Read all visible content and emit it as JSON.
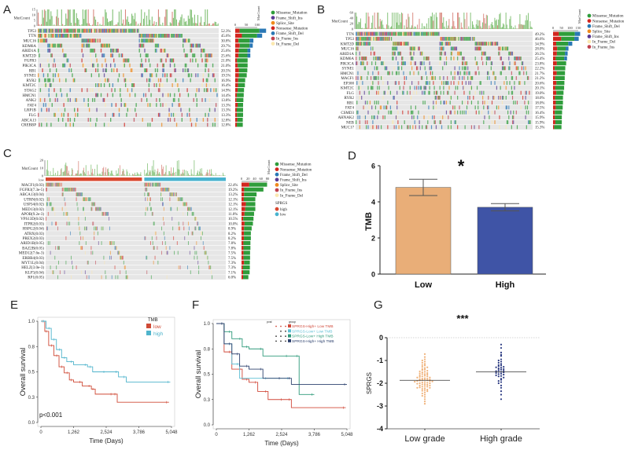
{
  "panels": {
    "A": "A",
    "B": "B",
    "C": "C",
    "D": "D",
    "E": "E",
    "F": "F",
    "G": "G"
  },
  "colors": {
    "Missense_Mutation": "#2f9d3b",
    "Nonsense_Mutation": "#d3261f",
    "Frame_Shift_Del": "#2a78b5",
    "Frame_Shift_Ins": "#5b3b94",
    "Splice_Site": "#f08a1c",
    "In_Frame_Ins": "#c0424f",
    "In_Frame_Del": "#fbe8b0",
    "sprgs_high": "#d9472f",
    "sprgs_low": "#49b3cf",
    "grid_bg": "#e6e6e6"
  },
  "chart_data": [
    {
      "type": "heatmap",
      "panel": "A",
      "count_label": "MutCount",
      "count_ticks": [
        "0",
        "5",
        "10",
        "15"
      ],
      "side_ticks": [
        "0",
        "50",
        "100"
      ],
      "genes": [
        "TP53",
        "TTN",
        "MUC16",
        "KDM6A",
        "ARID1A",
        "KMT2D",
        "FGFR3",
        "PIK3CA",
        "RB1",
        "SYNE1",
        "RYR2",
        "KMT2C",
        "STAG2",
        "HMCN1",
        "ANK2",
        "FAT4",
        "LRP1B",
        "FLG",
        "ABCA13",
        "CREBBP"
      ],
      "percents": [
        "52.3%",
        "45.6%",
        "30.8%",
        "29.7%",
        "25.6%",
        "25.6%",
        "21.0%",
        "21.0%",
        "20.5%",
        "19.5%",
        "16.9%",
        "16.4%",
        "14.9%",
        "14.4%",
        "13.8%",
        "13.3%",
        "13.3%",
        "13.3%",
        "12.8%",
        "12.8%"
      ],
      "legend": [
        "Missense_Mutation",
        "Frame_Shift_Ins",
        "Splice_Site",
        "Nonsense_Mutation",
        "Frame_Shift_Del",
        "In_Frame_Ins",
        "In_Frame_Del"
      ]
    },
    {
      "type": "heatmap",
      "panel": "B",
      "count_label": "MutCount",
      "count_ticks": [
        "0",
        "20",
        "40",
        "60"
      ],
      "side_ticks": [
        "0",
        "50",
        "100",
        "150"
      ],
      "genes": [
        "TTN",
        "TP53",
        "KMT2D",
        "MUC16",
        "ARID1A",
        "KDM6A",
        "PIK3CA",
        "SYNE1",
        "HMCN1",
        "MACF1",
        "EP300",
        "KMT2C",
        "FLG",
        "RYR2",
        "RB1",
        "FAT4",
        "CSMD3",
        "AHNAK2",
        "NEB",
        "MUC17"
      ],
      "percents": [
        "49.2%",
        "46.6%",
        "34.9%",
        "28.0%",
        "26.5%",
        "25.4%",
        "23.8%",
        "22.2%",
        "21.7%",
        "21.2%",
        "20.6%",
        "20.1%",
        "19.0%",
        "18.0%",
        "18.0%",
        "17.5%",
        "16.4%",
        "15.9%",
        "15.9%",
        "15.3%"
      ],
      "legend": [
        "Missense_Mutation",
        "Nonsense_Mutation",
        "Frame_Shift_Del",
        "Splice_Site",
        "Frame_Shift_Ins",
        "In_Frame_Del",
        "In_Frame_Ins"
      ]
    },
    {
      "type": "heatmap",
      "panel": "C",
      "count_label": "MutCount",
      "count_ticks": [
        "0",
        "10",
        "20"
      ],
      "side_ticks": [
        "0",
        "20",
        "40",
        "60",
        "80"
      ],
      "group_label": "low",
      "genes": [
        "MACF1(0.03)",
        "FGFR3(7.3e-5)",
        "ABCA13(0.04)",
        "UTRN(0.02)",
        "USP34(0.02)",
        "MED13(0.02)",
        "APOB(9.2e-3)",
        "VPS13D(0.02)",
        "ITPR2(0.03)",
        "HSPG2(0.04)",
        "ATRX(0.03)",
        "PREX2(0.03)",
        "ARID1B(0.05)",
        "BAZ2B(0.05)",
        "MED12(7.6e-3)",
        "ERBB4(0.03)",
        "MYT1L(0.04)",
        "HELZ(3.0e-3)",
        "KLF5(0.04)",
        "RP1(0.05)"
      ],
      "percents": [
        "22.4%",
        "19.2%",
        "13.2%",
        "12.1%",
        "12.1%",
        "12.1%",
        "11.0%",
        "10.5%",
        "10.0%",
        "8.9%",
        "8.2%",
        "8.2%",
        "7.8%",
        "7.8%",
        "7.5%",
        "7.5%",
        "7.3%",
        "7.3%",
        "7.1%",
        "6.0%"
      ],
      "legend": [
        "Missense_Mutation",
        "Nonsense_Mutation",
        "Frame_Shift_Del",
        "Frame_Shift_Ins",
        "Splice_Site",
        "In_Frame_Ins",
        "In_Frame_Del"
      ],
      "group_legend_title": "SPRGS",
      "group_legend": [
        "high",
        "low"
      ]
    },
    {
      "type": "bar",
      "panel": "D",
      "categories": [
        "Low",
        "High"
      ],
      "values": [
        4.8,
        3.7
      ],
      "error": [
        [
          4.35,
          5.25
        ],
        [
          3.5,
          3.9
        ]
      ],
      "ylabel": "TMB",
      "ylim": [
        0,
        6
      ],
      "yticks": [
        "0",
        "2",
        "4",
        "6"
      ],
      "annotation": "*",
      "colors": [
        "#e9ae78",
        "#3f54a6"
      ]
    },
    {
      "type": "line",
      "panel": "E",
      "xlabel": "Time (Days)",
      "ylabel": "Overall survival",
      "xticks": [
        "0",
        "1,262",
        "2,524",
        "3,786",
        "5,048"
      ],
      "xlim": [
        0,
        5048
      ],
      "yticks": [
        {
          "v": 0,
          "label": "0.0"
        },
        {
          "v": 0.25,
          "label": "0.3"
        },
        {
          "v": 0.5,
          "label": "0.5"
        },
        {
          "v": 0.75,
          "label": "0.8"
        },
        {
          "v": 1,
          "label": "1.0"
        }
      ],
      "legend_title": "TMB",
      "annotation": "p<0.001",
      "series": [
        {
          "name": "low",
          "color": "#cf4a36",
          "x": [
            0,
            150,
            300,
            500,
            700,
            900,
            1100,
            1262,
            1600,
            1950,
            2100,
            2800,
            2950,
            4950
          ],
          "y": [
            1,
            0.9,
            0.76,
            0.66,
            0.55,
            0.49,
            0.42,
            0.4,
            0.36,
            0.33,
            0.28,
            0.28,
            0.2,
            0.2
          ]
        },
        {
          "name": "high",
          "color": "#4fb4cc",
          "x": [
            0,
            200,
            400,
            600,
            800,
            1000,
            1262,
            1800,
            2000,
            2524,
            3000,
            3300,
            5000
          ],
          "y": [
            1,
            0.93,
            0.82,
            0.72,
            0.64,
            0.6,
            0.57,
            0.55,
            0.5,
            0.5,
            0.45,
            0.4,
            0.4
          ]
        }
      ]
    },
    {
      "type": "line",
      "panel": "F",
      "xlabel": "Time (Days)",
      "ylabel": "Overall survival",
      "xticks": [
        "0",
        "1,262",
        "2,524",
        "3,786",
        "5,048"
      ],
      "xlim": [
        0,
        5048
      ],
      "yticks": [
        {
          "v": 0,
          "label": "0.0"
        },
        {
          "v": 0.25,
          "label": "0.3"
        },
        {
          "v": 0.5,
          "label": "0.5"
        },
        {
          "v": 0.75,
          "label": "0.8"
        },
        {
          "v": 1,
          "label": "1.0"
        }
      ],
      "legend_title": "group",
      "pval_label": "pval",
      "series": [
        {
          "name": "SPRGS-High+ Low TMB",
          "color": "#d1493a",
          "x": [
            0,
            300,
            600,
            1000,
            1262,
            1600,
            2000,
            2600,
            2900,
            5000
          ],
          "y": [
            1,
            0.72,
            0.55,
            0.45,
            0.42,
            0.33,
            0.25,
            0.25,
            0.17,
            0.17
          ]
        },
        {
          "name": "SPRGS-Low+ Low TMB",
          "color": "#5dbfd4",
          "x": [
            0,
            300,
            600,
            900,
            2000,
            2850
          ],
          "y": [
            1,
            0.8,
            0.6,
            0.46,
            0.46,
            0.46
          ]
        },
        {
          "name": "SPRGS-Low+ High TMB",
          "color": "#2e9a7a",
          "x": [
            0,
            300,
            600,
            1000,
            1262,
            1800,
            2800,
            3200,
            3786
          ],
          "y": [
            1,
            0.92,
            0.85,
            0.77,
            0.75,
            0.68,
            0.68,
            0.3,
            0.3
          ]
        },
        {
          "name": "SPRGS-High+ High TMB",
          "color": "#2d416e",
          "x": [
            0,
            300,
            600,
            900,
            1262,
            1800,
            2524,
            2900,
            5048
          ],
          "y": [
            1,
            0.8,
            0.7,
            0.58,
            0.55,
            0.46,
            0.46,
            0.4,
            0.4
          ]
        }
      ]
    },
    {
      "type": "scatter",
      "panel": "G",
      "ylabel": "SPRGS",
      "categories": [
        "Low grade",
        "High grade"
      ],
      "ylim": [
        -4,
        0
      ],
      "yticks": [
        "0",
        "-1",
        "-2",
        "-3",
        "-4"
      ],
      "annotation": "***",
      "colors": [
        "#f0b27a",
        "#2b3a82"
      ],
      "medians": [
        -1.87,
        -1.5
      ],
      "series": [
        {
          "values": [
            -0.72,
            -0.85,
            -0.95,
            -1.0,
            -1.05,
            -1.1,
            -1.15,
            -1.2,
            -1.22,
            -1.28,
            -1.3,
            -1.33,
            -1.38,
            -1.4,
            -1.42,
            -1.45,
            -1.48,
            -1.5,
            -1.52,
            -1.55,
            -1.57,
            -1.6,
            -1.6,
            -1.62,
            -1.65,
            -1.67,
            -1.7,
            -1.7,
            -1.72,
            -1.75,
            -1.75,
            -1.78,
            -1.8,
            -1.8,
            -1.82,
            -1.84,
            -1.85,
            -1.86,
            -1.87,
            -1.88,
            -1.9,
            -1.9,
            -1.92,
            -1.93,
            -1.95,
            -1.96,
            -1.98,
            -2.0,
            -2.0,
            -2.02,
            -2.04,
            -2.05,
            -2.07,
            -2.1,
            -2.1,
            -2.12,
            -2.15,
            -2.15,
            -2.18,
            -2.2,
            -2.2,
            -2.22,
            -2.25,
            -2.28,
            -2.3,
            -2.33,
            -2.35,
            -2.4,
            -2.45,
            -2.5,
            -2.55,
            -2.6,
            -2.7,
            -2.8,
            -2.9
          ]
        },
        {
          "values": [
            -0.3,
            -0.45,
            -0.65,
            -0.75,
            -0.8,
            -0.95,
            -1.0,
            -1.05,
            -1.1,
            -1.15,
            -1.2,
            -1.22,
            -1.25,
            -1.28,
            -1.3,
            -1.32,
            -1.35,
            -1.38,
            -1.4,
            -1.42,
            -1.45,
            -1.47,
            -1.5,
            -1.5,
            -1.52,
            -1.55,
            -1.58,
            -1.6,
            -1.62,
            -1.65,
            -1.68,
            -1.7,
            -1.75,
            -1.8,
            -1.85,
            -1.9,
            -1.95,
            -2.0,
            -2.1,
            -2.2,
            -2.35,
            -2.5,
            -2.7
          ]
        }
      ]
    }
  ]
}
